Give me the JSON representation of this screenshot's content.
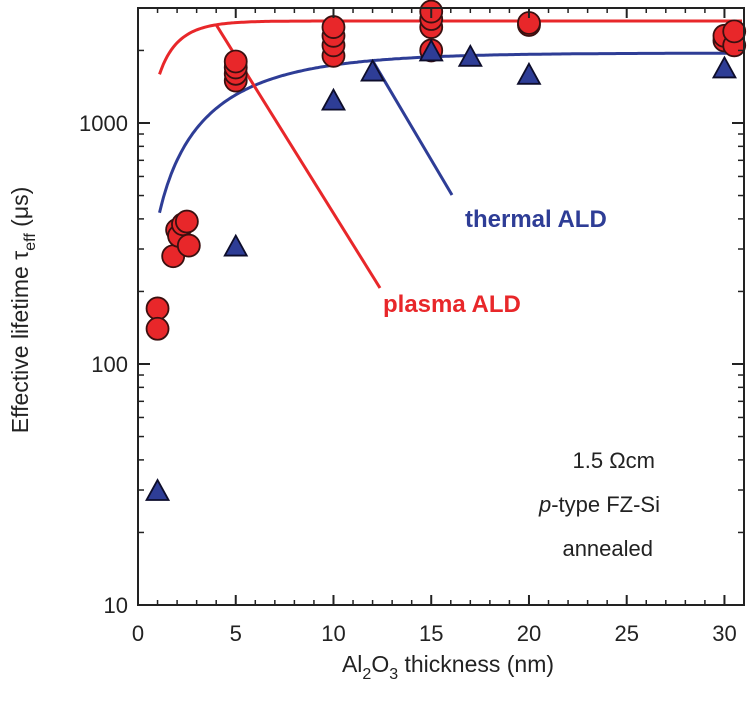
{
  "chart_data": {
    "type": "scatter",
    "title": "",
    "xlabel": {
      "main": "Al",
      "sub": "2",
      "mid": "O",
      "sub2": "3",
      "rest": " thickness (nm)"
    },
    "ylabel": {
      "main": "Effective lifetime τ",
      "sub": "eff",
      "rest": " (μs)"
    },
    "xlim": [
      0,
      31
    ],
    "ylim": [
      10,
      3000
    ],
    "yscale": "log",
    "x_ticks": [
      "0",
      "5",
      "10",
      "15",
      "20",
      "25",
      "30"
    ],
    "y_ticks": [
      "10",
      "100",
      "1000"
    ],
    "grid": false,
    "series": [
      {
        "name": "plasma ALD",
        "marker": "circle",
        "color": "#e8272a",
        "points": [
          [
            1,
            170
          ],
          [
            1,
            140
          ],
          [
            1.8,
            280
          ],
          [
            2,
            360
          ],
          [
            2.1,
            340
          ],
          [
            2.3,
            380
          ],
          [
            2.5,
            390
          ],
          [
            2.6,
            310
          ],
          [
            5,
            1500
          ],
          [
            5,
            1600
          ],
          [
            5,
            1700
          ],
          [
            5,
            1800
          ],
          [
            10,
            1900
          ],
          [
            10,
            2100
          ],
          [
            10,
            2300
          ],
          [
            10,
            2500
          ],
          [
            15,
            2000
          ],
          [
            15,
            2500
          ],
          [
            15,
            2700
          ],
          [
            15,
            2900
          ],
          [
            20,
            2550
          ],
          [
            20,
            2600
          ],
          [
            30,
            2200
          ],
          [
            30,
            2300
          ],
          [
            30.5,
            2100
          ],
          [
            30.5,
            2400
          ]
        ],
        "fit": {
          "A": 2650,
          "b": 6,
          "lambda": 1.2
        }
      },
      {
        "name": "thermal ALD",
        "marker": "triangle",
        "color": "#2e3d96",
        "points": [
          [
            1,
            30
          ],
          [
            5,
            310
          ],
          [
            10,
            1250
          ],
          [
            12,
            1650
          ],
          [
            15,
            2000
          ],
          [
            17,
            1900
          ],
          [
            20,
            1600
          ],
          [
            30,
            1700
          ]
        ],
        "fit": {
          "A": 1950,
          "b": 1.7,
          "lambda": 4.5
        }
      }
    ],
    "annotations": {
      "plasma": "plasma ALD",
      "thermal": "thermal ALD",
      "info_line1": "1.5 Ωcm",
      "info_line2_italic": "p",
      "info_line2_rest": "-type FZ-Si",
      "info_line3": "annealed"
    }
  }
}
